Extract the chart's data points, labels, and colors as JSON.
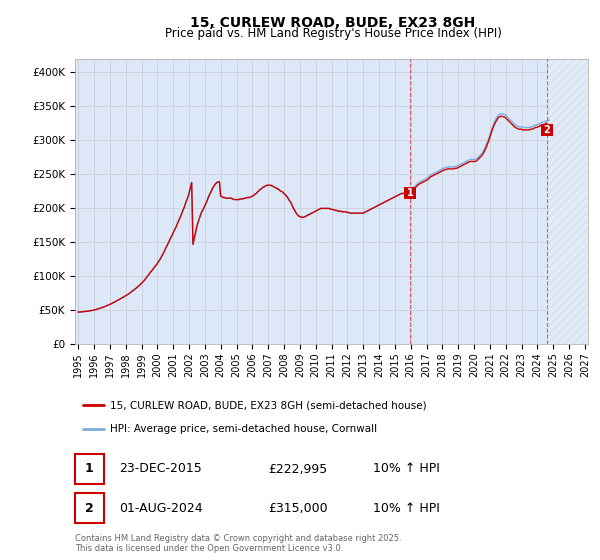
{
  "title": "15, CURLEW ROAD, BUDE, EX23 8GH",
  "subtitle": "Price paid vs. HM Land Registry's House Price Index (HPI)",
  "ylabel_ticks": [
    "£0",
    "£50K",
    "£100K",
    "£150K",
    "£200K",
    "£250K",
    "£300K",
    "£350K",
    "£400K"
  ],
  "ytick_values": [
    0,
    50000,
    100000,
    150000,
    200000,
    250000,
    300000,
    350000,
    400000
  ],
  "ylim": [
    0,
    420000
  ],
  "xlim_start": 1994.8,
  "xlim_end": 2027.2,
  "xticks": [
    1995,
    1996,
    1997,
    1998,
    1999,
    2000,
    2001,
    2002,
    2003,
    2004,
    2005,
    2006,
    2007,
    2008,
    2009,
    2010,
    2011,
    2012,
    2013,
    2014,
    2015,
    2016,
    2017,
    2018,
    2019,
    2020,
    2021,
    2022,
    2023,
    2024,
    2025,
    2026,
    2027
  ],
  "grid_color": "#cccccc",
  "bg_color": "#dce8f8",
  "red_color": "#cc0000",
  "blue_color": "#7aaddc",
  "sale1_x": 2015.98,
  "sale1_y": 222995,
  "sale1_label": "1",
  "sale2_x": 2024.58,
  "sale2_y": 315000,
  "sale2_label": "2",
  "legend_line1": "15, CURLEW ROAD, BUDE, EX23 8GH (semi-detached house)",
  "legend_line2": "HPI: Average price, semi-detached house, Cornwall",
  "annotation1_date": "23-DEC-2015",
  "annotation1_price": "£222,995",
  "annotation1_hpi": "10% ↑ HPI",
  "annotation2_date": "01-AUG-2024",
  "annotation2_price": "£315,000",
  "annotation2_hpi": "10% ↑ HPI",
  "footer": "Contains HM Land Registry data © Crown copyright and database right 2025.\nThis data is licensed under the Open Government Licence v3.0.",
  "hpi_data_x": [
    1995.0,
    1995.08,
    1995.17,
    1995.25,
    1995.33,
    1995.42,
    1995.5,
    1995.58,
    1995.67,
    1995.75,
    1995.83,
    1995.92,
    1996.0,
    1996.08,
    1996.17,
    1996.25,
    1996.33,
    1996.42,
    1996.5,
    1996.58,
    1996.67,
    1996.75,
    1996.83,
    1996.92,
    1997.0,
    1997.08,
    1997.17,
    1997.25,
    1997.33,
    1997.42,
    1997.5,
    1997.58,
    1997.67,
    1997.75,
    1997.83,
    1997.92,
    1998.0,
    1998.08,
    1998.17,
    1998.25,
    1998.33,
    1998.42,
    1998.5,
    1998.58,
    1998.67,
    1998.75,
    1998.83,
    1998.92,
    1999.0,
    1999.08,
    1999.17,
    1999.25,
    1999.33,
    1999.42,
    1999.5,
    1999.58,
    1999.67,
    1999.75,
    1999.83,
    1999.92,
    2000.0,
    2000.08,
    2000.17,
    2000.25,
    2000.33,
    2000.42,
    2000.5,
    2000.58,
    2000.67,
    2000.75,
    2000.83,
    2000.92,
    2001.0,
    2001.08,
    2001.17,
    2001.25,
    2001.33,
    2001.42,
    2001.5,
    2001.58,
    2001.67,
    2001.75,
    2001.83,
    2001.92,
    2002.0,
    2002.08,
    2002.17,
    2002.25,
    2002.33,
    2002.42,
    2002.5,
    2002.58,
    2002.67,
    2002.75,
    2002.83,
    2002.92,
    2003.0,
    2003.08,
    2003.17,
    2003.25,
    2003.33,
    2003.42,
    2003.5,
    2003.58,
    2003.67,
    2003.75,
    2003.83,
    2003.92,
    2004.0,
    2004.08,
    2004.17,
    2004.25,
    2004.33,
    2004.42,
    2004.5,
    2004.58,
    2004.67,
    2004.75,
    2004.83,
    2004.92,
    2005.0,
    2005.08,
    2005.17,
    2005.25,
    2005.33,
    2005.42,
    2005.5,
    2005.58,
    2005.67,
    2005.75,
    2005.83,
    2005.92,
    2006.0,
    2006.08,
    2006.17,
    2006.25,
    2006.33,
    2006.42,
    2006.5,
    2006.58,
    2006.67,
    2006.75,
    2006.83,
    2006.92,
    2007.0,
    2007.08,
    2007.17,
    2007.25,
    2007.33,
    2007.42,
    2007.5,
    2007.58,
    2007.67,
    2007.75,
    2007.83,
    2007.92,
    2008.0,
    2008.08,
    2008.17,
    2008.25,
    2008.33,
    2008.42,
    2008.5,
    2008.58,
    2008.67,
    2008.75,
    2008.83,
    2008.92,
    2009.0,
    2009.08,
    2009.17,
    2009.25,
    2009.33,
    2009.42,
    2009.5,
    2009.58,
    2009.67,
    2009.75,
    2009.83,
    2009.92,
    2010.0,
    2010.08,
    2010.17,
    2010.25,
    2010.33,
    2010.42,
    2010.5,
    2010.58,
    2010.67,
    2010.75,
    2010.83,
    2010.92,
    2011.0,
    2011.08,
    2011.17,
    2011.25,
    2011.33,
    2011.42,
    2011.5,
    2011.58,
    2011.67,
    2011.75,
    2011.83,
    2011.92,
    2012.0,
    2012.08,
    2012.17,
    2012.25,
    2012.33,
    2012.42,
    2012.5,
    2012.58,
    2012.67,
    2012.75,
    2012.83,
    2012.92,
    2013.0,
    2013.08,
    2013.17,
    2013.25,
    2013.33,
    2013.42,
    2013.5,
    2013.58,
    2013.67,
    2013.75,
    2013.83,
    2013.92,
    2014.0,
    2014.08,
    2014.17,
    2014.25,
    2014.33,
    2014.42,
    2014.5,
    2014.58,
    2014.67,
    2014.75,
    2014.83,
    2014.92,
    2015.0,
    2015.08,
    2015.17,
    2015.25,
    2015.33,
    2015.42,
    2015.5,
    2015.58,
    2015.67,
    2015.75,
    2015.83,
    2015.92,
    2016.0,
    2016.08,
    2016.17,
    2016.25,
    2016.33,
    2016.42,
    2016.5,
    2016.58,
    2016.67,
    2016.75,
    2016.83,
    2016.92,
    2017.0,
    2017.08,
    2017.17,
    2017.25,
    2017.33,
    2017.42,
    2017.5,
    2017.58,
    2017.67,
    2017.75,
    2017.83,
    2017.92,
    2018.0,
    2018.08,
    2018.17,
    2018.25,
    2018.33,
    2018.42,
    2018.5,
    2018.58,
    2018.67,
    2018.75,
    2018.83,
    2018.92,
    2019.0,
    2019.08,
    2019.17,
    2019.25,
    2019.33,
    2019.42,
    2019.5,
    2019.58,
    2019.67,
    2019.75,
    2019.83,
    2019.92,
    2020.0,
    2020.08,
    2020.17,
    2020.25,
    2020.33,
    2020.42,
    2020.5,
    2020.58,
    2020.67,
    2020.75,
    2020.83,
    2020.92,
    2021.0,
    2021.08,
    2021.17,
    2021.25,
    2021.33,
    2021.42,
    2021.5,
    2021.58,
    2021.67,
    2021.75,
    2021.83,
    2021.92,
    2022.0,
    2022.08,
    2022.17,
    2022.25,
    2022.33,
    2022.42,
    2022.5,
    2022.58,
    2022.67,
    2022.75,
    2022.83,
    2022.92,
    2023.0,
    2023.08,
    2023.17,
    2023.25,
    2023.33,
    2023.42,
    2023.5,
    2023.58,
    2023.67,
    2023.75,
    2023.83,
    2023.92,
    2024.0,
    2024.08,
    2024.17,
    2024.25,
    2024.33,
    2024.42,
    2024.5,
    2024.58,
    2024.67,
    2024.75
  ],
  "hpi_data_y": [
    47500,
    47600,
    47700,
    47900,
    48100,
    48300,
    48500,
    48800,
    49100,
    49400,
    49700,
    50100,
    50500,
    51000,
    51600,
    52200,
    52800,
    53400,
    54100,
    54800,
    55500,
    56300,
    57100,
    57900,
    58800,
    59700,
    60700,
    61700,
    62700,
    63700,
    64800,
    65900,
    67000,
    68100,
    69200,
    70300,
    71500,
    72700,
    74000,
    75400,
    76800,
    78300,
    79800,
    81300,
    82900,
    84500,
    86200,
    88000,
    90000,
    92000,
    94000,
    96500,
    99000,
    101500,
    104000,
    106500,
    109000,
    111500,
    114000,
    116500,
    119000,
    122000,
    125000,
    128500,
    132000,
    136000,
    140000,
    144000,
    148000,
    152000,
    156000,
    160000,
    164000,
    168000,
    172000,
    176500,
    181000,
    185500,
    190000,
    195000,
    200000,
    205000,
    210500,
    216000,
    222000,
    230000,
    238000,
    147000,
    156000,
    165000,
    174000,
    180000,
    186000,
    192000,
    196000,
    200000,
    204000,
    208000,
    213000,
    218000,
    222000,
    226000,
    230000,
    233000,
    236000,
    238000,
    239000,
    239000,
    218000,
    217000,
    216000,
    216000,
    215000,
    215000,
    215000,
    215000,
    215000,
    214000,
    213000,
    213000,
    213000,
    213000,
    213000,
    214000,
    214000,
    214000,
    215000,
    215000,
    216000,
    216000,
    216000,
    217000,
    218000,
    219000,
    221000,
    222000,
    224000,
    226000,
    228000,
    229000,
    231000,
    232000,
    233000,
    234000,
    234000,
    234000,
    234000,
    233000,
    232000,
    231000,
    230000,
    229000,
    228000,
    226000,
    225000,
    224000,
    222000,
    220000,
    218000,
    215000,
    212000,
    209000,
    205000,
    201000,
    197000,
    194000,
    191000,
    189000,
    188000,
    187000,
    187000,
    187000,
    188000,
    189000,
    190000,
    191000,
    192000,
    193000,
    194000,
    195000,
    196000,
    197000,
    198000,
    199000,
    200000,
    200000,
    200000,
    200000,
    200000,
    200000,
    200000,
    199000,
    199000,
    198000,
    198000,
    197000,
    197000,
    196000,
    196000,
    196000,
    195000,
    195000,
    195000,
    195000,
    194000,
    194000,
    193000,
    193000,
    193000,
    193000,
    193000,
    193000,
    193000,
    193000,
    193000,
    193000,
    193000,
    194000,
    195000,
    196000,
    197000,
    198000,
    199000,
    200000,
    201000,
    202000,
    203000,
    204000,
    205000,
    206000,
    207000,
    208000,
    209000,
    210000,
    211000,
    212000,
    213000,
    214000,
    215000,
    216000,
    217000,
    218000,
    219000,
    220000,
    221000,
    222000,
    222000,
    222000,
    222000,
    223000,
    223000,
    224000,
    226000,
    228000,
    230000,
    232000,
    234000,
    236000,
    238000,
    239000,
    240000,
    241000,
    242000,
    243000,
    244000,
    245000,
    247000,
    249000,
    250000,
    251000,
    252000,
    253000,
    254000,
    255000,
    256000,
    257000,
    258000,
    259000,
    260000,
    260000,
    261000,
    261000,
    261000,
    261000,
    261000,
    261000,
    262000,
    262000,
    263000,
    264000,
    265000,
    266000,
    267000,
    268000,
    269000,
    270000,
    271000,
    272000,
    272000,
    272000,
    272000,
    272000,
    273000,
    275000,
    277000,
    279000,
    281000,
    284000,
    288000,
    292000,
    297000,
    302000,
    308000,
    314000,
    320000,
    325000,
    329000,
    333000,
    336000,
    338000,
    339000,
    339000,
    339000,
    338000,
    337000,
    335000,
    333000,
    331000,
    329000,
    327000,
    325000,
    323000,
    322000,
    321000,
    320000,
    320000,
    320000,
    319000,
    319000,
    319000,
    319000,
    319000,
    319000,
    320000,
    320000,
    321000,
    322000,
    323000,
    323000,
    324000,
    325000,
    326000,
    327000,
    327000,
    328000,
    329000,
    329000,
    330000
  ],
  "red_data_x": [
    1995.0,
    1995.08,
    1995.17,
    1995.25,
    1995.33,
    1995.42,
    1995.5,
    1995.58,
    1995.67,
    1995.75,
    1995.83,
    1995.92,
    1996.0,
    1996.08,
    1996.17,
    1996.25,
    1996.33,
    1996.42,
    1996.5,
    1996.58,
    1996.67,
    1996.75,
    1996.83,
    1996.92,
    1997.0,
    1997.08,
    1997.17,
    1997.25,
    1997.33,
    1997.42,
    1997.5,
    1997.58,
    1997.67,
    1997.75,
    1997.83,
    1997.92,
    1998.0,
    1998.08,
    1998.17,
    1998.25,
    1998.33,
    1998.42,
    1998.5,
    1998.58,
    1998.67,
    1998.75,
    1998.83,
    1998.92,
    1999.0,
    1999.08,
    1999.17,
    1999.25,
    1999.33,
    1999.42,
    1999.5,
    1999.58,
    1999.67,
    1999.75,
    1999.83,
    1999.92,
    2000.0,
    2000.08,
    2000.17,
    2000.25,
    2000.33,
    2000.42,
    2000.5,
    2000.58,
    2000.67,
    2000.75,
    2000.83,
    2000.92,
    2001.0,
    2001.08,
    2001.17,
    2001.25,
    2001.33,
    2001.42,
    2001.5,
    2001.58,
    2001.67,
    2001.75,
    2001.83,
    2001.92,
    2002.0,
    2002.08,
    2002.17,
    2002.25,
    2002.33,
    2002.42,
    2002.5,
    2002.58,
    2002.67,
    2002.75,
    2002.83,
    2002.92,
    2003.0,
    2003.08,
    2003.17,
    2003.25,
    2003.33,
    2003.42,
    2003.5,
    2003.58,
    2003.67,
    2003.75,
    2003.83,
    2003.92,
    2004.0,
    2004.08,
    2004.17,
    2004.25,
    2004.33,
    2004.42,
    2004.5,
    2004.58,
    2004.67,
    2004.75,
    2004.83,
    2004.92,
    2005.0,
    2005.08,
    2005.17,
    2005.25,
    2005.33,
    2005.42,
    2005.5,
    2005.58,
    2005.67,
    2005.75,
    2005.83,
    2005.92,
    2006.0,
    2006.08,
    2006.17,
    2006.25,
    2006.33,
    2006.42,
    2006.5,
    2006.58,
    2006.67,
    2006.75,
    2006.83,
    2006.92,
    2007.0,
    2007.08,
    2007.17,
    2007.25,
    2007.33,
    2007.42,
    2007.5,
    2007.58,
    2007.67,
    2007.75,
    2007.83,
    2007.92,
    2008.0,
    2008.08,
    2008.17,
    2008.25,
    2008.33,
    2008.42,
    2008.5,
    2008.58,
    2008.67,
    2008.75,
    2008.83,
    2008.92,
    2009.0,
    2009.08,
    2009.17,
    2009.25,
    2009.33,
    2009.42,
    2009.5,
    2009.58,
    2009.67,
    2009.75,
    2009.83,
    2009.92,
    2010.0,
    2010.08,
    2010.17,
    2010.25,
    2010.33,
    2010.42,
    2010.5,
    2010.58,
    2010.67,
    2010.75,
    2010.83,
    2010.92,
    2011.0,
    2011.08,
    2011.17,
    2011.25,
    2011.33,
    2011.42,
    2011.5,
    2011.58,
    2011.67,
    2011.75,
    2011.83,
    2011.92,
    2012.0,
    2012.08,
    2012.17,
    2012.25,
    2012.33,
    2012.42,
    2012.5,
    2012.58,
    2012.67,
    2012.75,
    2012.83,
    2012.92,
    2013.0,
    2013.08,
    2013.17,
    2013.25,
    2013.33,
    2013.42,
    2013.5,
    2013.58,
    2013.67,
    2013.75,
    2013.83,
    2013.92,
    2014.0,
    2014.08,
    2014.17,
    2014.25,
    2014.33,
    2014.42,
    2014.5,
    2014.58,
    2014.67,
    2014.75,
    2014.83,
    2014.92,
    2015.0,
    2015.08,
    2015.17,
    2015.25,
    2015.33,
    2015.42,
    2015.5,
    2015.58,
    2015.67,
    2015.75,
    2015.83,
    2015.92,
    2015.98,
    2016.0,
    2016.08,
    2016.17,
    2016.25,
    2016.33,
    2016.42,
    2016.5,
    2016.58,
    2016.67,
    2016.75,
    2016.83,
    2016.92,
    2017.0,
    2017.08,
    2017.17,
    2017.25,
    2017.33,
    2017.42,
    2017.5,
    2017.58,
    2017.67,
    2017.75,
    2017.83,
    2017.92,
    2018.0,
    2018.08,
    2018.17,
    2018.25,
    2018.33,
    2018.42,
    2018.5,
    2018.58,
    2018.67,
    2018.75,
    2018.83,
    2018.92,
    2019.0,
    2019.08,
    2019.17,
    2019.25,
    2019.33,
    2019.42,
    2019.5,
    2019.58,
    2019.67,
    2019.75,
    2019.83,
    2019.92,
    2020.0,
    2020.08,
    2020.17,
    2020.25,
    2020.33,
    2020.42,
    2020.5,
    2020.58,
    2020.67,
    2020.75,
    2020.83,
    2020.92,
    2021.0,
    2021.08,
    2021.17,
    2021.25,
    2021.33,
    2021.42,
    2021.5,
    2021.58,
    2021.67,
    2021.75,
    2021.83,
    2021.92,
    2022.0,
    2022.08,
    2022.17,
    2022.25,
    2022.33,
    2022.42,
    2022.5,
    2022.58,
    2022.67,
    2022.75,
    2022.83,
    2022.92,
    2023.0,
    2023.08,
    2023.17,
    2023.25,
    2023.33,
    2023.42,
    2023.5,
    2023.58,
    2023.67,
    2023.75,
    2023.83,
    2023.92,
    2024.0,
    2024.08,
    2024.17,
    2024.25,
    2024.33,
    2024.42,
    2024.5,
    2024.58
  ],
  "shaded_region_start": 2024.58,
  "shaded_region_end": 2027.2,
  "shade_color": "#dce8f8",
  "hatch_color": "#b8cce4"
}
